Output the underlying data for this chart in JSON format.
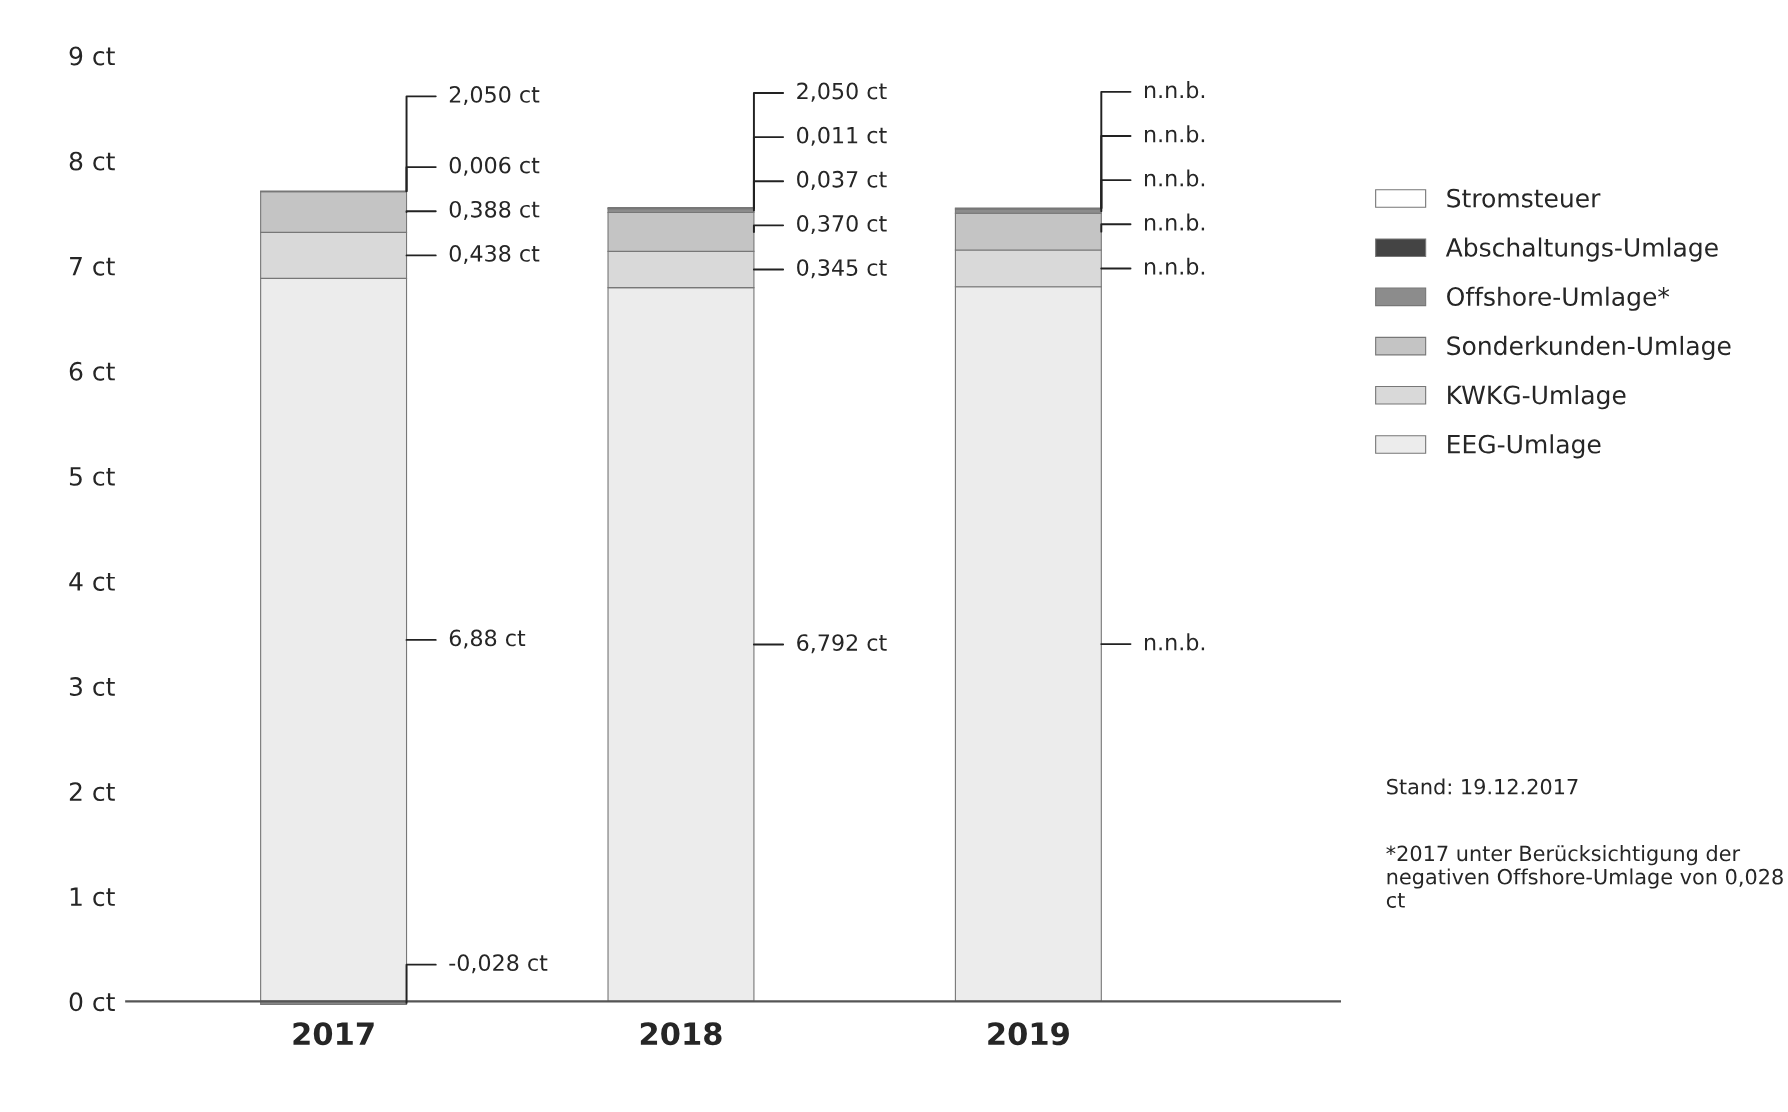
{
  "chart_data": {
    "type": "bar",
    "stacked": true,
    "categories": [
      "2017",
      "2018",
      "2019"
    ],
    "series": [
      {
        "name": "EEG-Umlage",
        "color": "#ececec",
        "values": [
          6.88,
          6.792,
          6.8
        ],
        "value_labels": [
          "6,88 ct",
          "6,792 ct",
          "n.n.b."
        ]
      },
      {
        "name": "KWKG-Umlage",
        "color": "#d9d9d9",
        "values": [
          0.438,
          0.345,
          0.35
        ],
        "value_labels": [
          "0,438 ct",
          "0,345 ct",
          "n.n.b."
        ]
      },
      {
        "name": "Sonderkunden-Umlage",
        "color": "#c4c4c4",
        "values": [
          0.388,
          0.37,
          0.35
        ],
        "value_labels": [
          "0,388 ct",
          "0,370 ct",
          "n.n.b."
        ]
      },
      {
        "name": "Offshore-Umlage*",
        "color": "#8c8c8c",
        "values": [
          -0.028,
          0.037,
          0.04
        ],
        "value_labels": [
          "-0,028 ct",
          "0,037 ct",
          "n.n.b."
        ]
      },
      {
        "name": "Abschaltungs-Umlage",
        "color": "#444444",
        "values": [
          0.006,
          0.011,
          0.01
        ],
        "value_labels": [
          "0,006 ct",
          "0,011 ct",
          "n.n.b."
        ]
      },
      {
        "name": "Stromsteuer",
        "color": "#ffffff",
        "values": [
          null,
          null,
          null
        ],
        "value_labels": [
          "2,050 ct",
          "2,050 ct",
          "n.n.b."
        ]
      }
    ],
    "ylim": [
      -0.1,
      9
    ],
    "yticks": [
      {
        "value": 0,
        "label": "0 ct"
      },
      {
        "value": 1,
        "label": "1 ct"
      },
      {
        "value": 2,
        "label": "2 ct"
      },
      {
        "value": 3,
        "label": "3 ct"
      },
      {
        "value": 4,
        "label": "4 ct"
      },
      {
        "value": 5,
        "label": "5 ct"
      },
      {
        "value": 6,
        "label": "6 ct"
      },
      {
        "value": 7,
        "label": "7 ct"
      },
      {
        "value": 8,
        "label": "8 ct"
      },
      {
        "value": 9,
        "label": "9 ct"
      }
    ],
    "grid": false,
    "legend": "right",
    "annotations": [
      "Stand: 19.12.2017",
      "*2017 unter Berücksichtigung der negativen Offshore-Umlage von 0,028 ct"
    ]
  }
}
